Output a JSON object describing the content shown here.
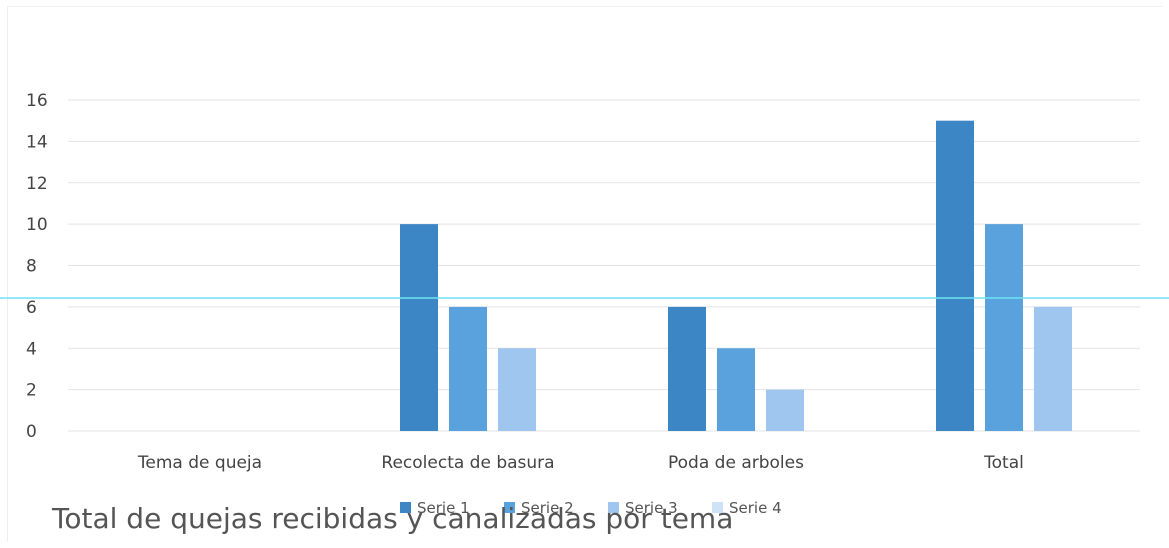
{
  "chart_data": {
    "type": "bar",
    "title": "Total de quejas recibidas y canalizadas por tema",
    "categories": [
      "Tema de queja",
      "Recolecta de basura",
      "Poda de arboles",
      "Total"
    ],
    "series": [
      {
        "name": "Serie 1",
        "color": "#3d86c6",
        "values": [
          null,
          10,
          6,
          15
        ]
      },
      {
        "name": "Serie 2",
        "color": "#5aa2dd",
        "values": [
          null,
          6,
          4,
          10
        ]
      },
      {
        "name": "Serie 3",
        "color": "#9ec6ee",
        "values": [
          null,
          4,
          2,
          6
        ]
      },
      {
        "name": "Serie 4",
        "color": "#cfe3f7",
        "values": [
          null,
          null,
          null,
          null
        ]
      }
    ],
    "ylim": [
      0,
      16
    ],
    "yticks": [
      "0",
      "2",
      "4",
      "6",
      "8",
      "10",
      "12",
      "14",
      "16"
    ],
    "grid": true,
    "legend_position": "bottom"
  },
  "colors": {
    "gridline": "#e3e3e3",
    "scan_line": "#6fe3f2"
  }
}
